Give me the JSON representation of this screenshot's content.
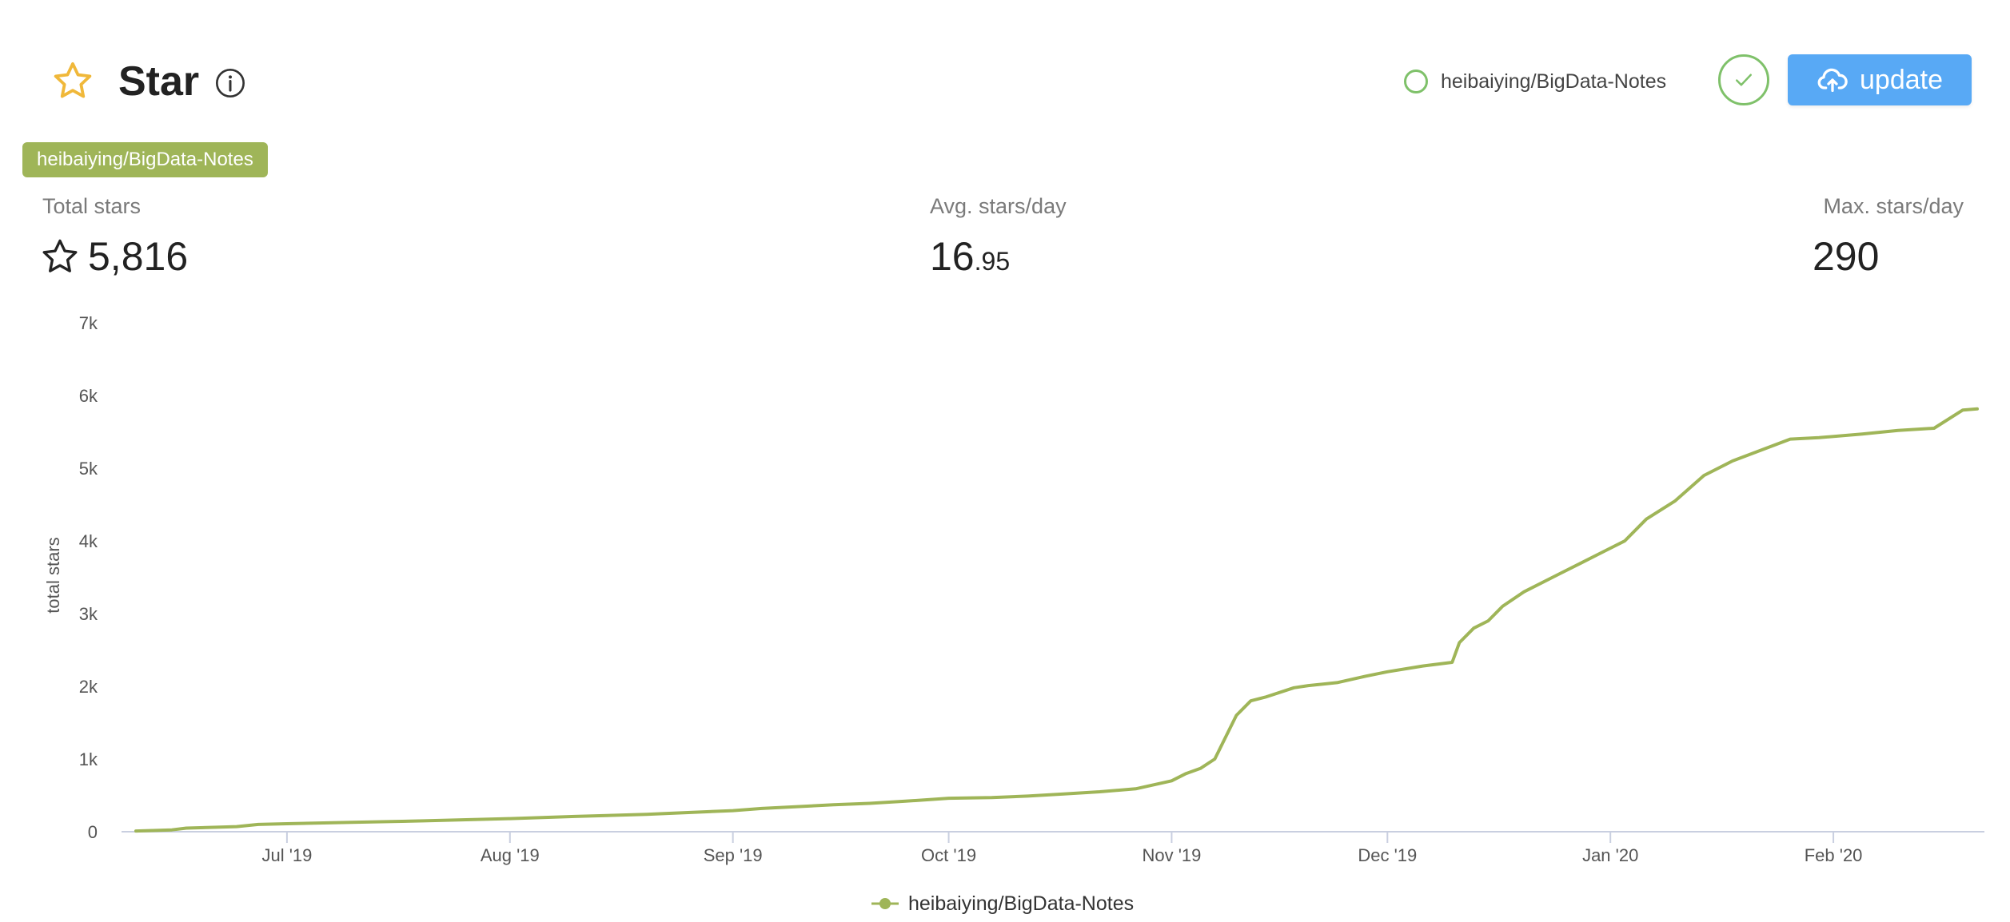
{
  "header": {
    "title": "Star",
    "repo_toggle_label": "heibaiying/BigData-Notes",
    "update_label": "update"
  },
  "repo_tag": "heibaiying/BigData-Notes",
  "stats": {
    "total_label": "Total stars",
    "total_value": "5,816",
    "avg_label": "Avg. stars/day",
    "avg_int": "16",
    "avg_frac": ".95",
    "max_label": "Max. stars/day",
    "max_value": "290"
  },
  "colors": {
    "series": "#9fb558",
    "accent_green": "#7fc16a",
    "button_blue": "#58a9f5",
    "star_gold": "#f0b83a"
  },
  "icons": {
    "title": "star-icon",
    "info": "info-icon",
    "confirm": "check-icon",
    "update": "cloud-upload-icon",
    "total": "star-outline-icon"
  },
  "chart_data": {
    "type": "line",
    "ylabel": "total stars",
    "ylim": [
      0,
      7000
    ],
    "yticks": [
      0,
      1000,
      2000,
      3000,
      4000,
      5000,
      6000,
      7000
    ],
    "ytick_labels": [
      "0",
      "1k",
      "2k",
      "3k",
      "4k",
      "5k",
      "6k",
      "7k"
    ],
    "xlim": [
      "2019-06-08",
      "2020-02-22"
    ],
    "xticks": [
      {
        "date": "2019-07-01",
        "label": "Jul '19"
      },
      {
        "date": "2019-08-01",
        "label": "Aug '19"
      },
      {
        "date": "2019-09-01",
        "label": "Sep '19"
      },
      {
        "date": "2019-10-01",
        "label": "Oct '19"
      },
      {
        "date": "2019-11-01",
        "label": "Nov '19"
      },
      {
        "date": "2019-12-01",
        "label": "Dec '19"
      },
      {
        "date": "2020-01-01",
        "label": "Jan '20"
      },
      {
        "date": "2020-02-01",
        "label": "Feb '20"
      }
    ],
    "grid": false,
    "legend": "bottom-center",
    "series": [
      {
        "name": "heibaiying/BigData-Notes",
        "points": [
          [
            "2019-06-10",
            10
          ],
          [
            "2019-06-15",
            25
          ],
          [
            "2019-06-17",
            50
          ],
          [
            "2019-06-24",
            70
          ],
          [
            "2019-06-27",
            100
          ],
          [
            "2019-07-01",
            110
          ],
          [
            "2019-07-10",
            130
          ],
          [
            "2019-07-20",
            150
          ],
          [
            "2019-08-01",
            180
          ],
          [
            "2019-08-10",
            210
          ],
          [
            "2019-08-20",
            240
          ],
          [
            "2019-09-01",
            290
          ],
          [
            "2019-09-05",
            320
          ],
          [
            "2019-09-15",
            370
          ],
          [
            "2019-09-20",
            390
          ],
          [
            "2019-09-25",
            420
          ],
          [
            "2019-10-01",
            460
          ],
          [
            "2019-10-07",
            470
          ],
          [
            "2019-10-12",
            490
          ],
          [
            "2019-10-17",
            520
          ],
          [
            "2019-10-22",
            550
          ],
          [
            "2019-10-27",
            590
          ],
          [
            "2019-11-01",
            700
          ],
          [
            "2019-11-03",
            800
          ],
          [
            "2019-11-05",
            870
          ],
          [
            "2019-11-07",
            1000
          ],
          [
            "2019-11-08",
            1200
          ],
          [
            "2019-11-10",
            1600
          ],
          [
            "2019-11-12",
            1800
          ],
          [
            "2019-11-14",
            1850
          ],
          [
            "2019-11-18",
            1980
          ],
          [
            "2019-11-20",
            2010
          ],
          [
            "2019-11-24",
            2050
          ],
          [
            "2019-11-28",
            2140
          ],
          [
            "2019-12-01",
            2200
          ],
          [
            "2019-12-06",
            2280
          ],
          [
            "2019-12-10",
            2330
          ],
          [
            "2019-12-11",
            2600
          ],
          [
            "2019-12-13",
            2800
          ],
          [
            "2019-12-15",
            2900
          ],
          [
            "2019-12-17",
            3100
          ],
          [
            "2019-12-20",
            3300
          ],
          [
            "2019-12-25",
            3550
          ],
          [
            "2019-12-28",
            3700
          ],
          [
            "2019-12-31",
            3850
          ],
          [
            "2020-01-03",
            4000
          ],
          [
            "2020-01-06",
            4300
          ],
          [
            "2020-01-10",
            4550
          ],
          [
            "2020-01-14",
            4900
          ],
          [
            "2020-01-18",
            5100
          ],
          [
            "2020-01-22",
            5250
          ],
          [
            "2020-01-26",
            5400
          ],
          [
            "2020-01-30",
            5420
          ],
          [
            "2020-02-05",
            5470
          ],
          [
            "2020-02-10",
            5520
          ],
          [
            "2020-02-15",
            5550
          ],
          [
            "2020-02-19",
            5800
          ],
          [
            "2020-02-21",
            5816
          ]
        ]
      }
    ]
  }
}
